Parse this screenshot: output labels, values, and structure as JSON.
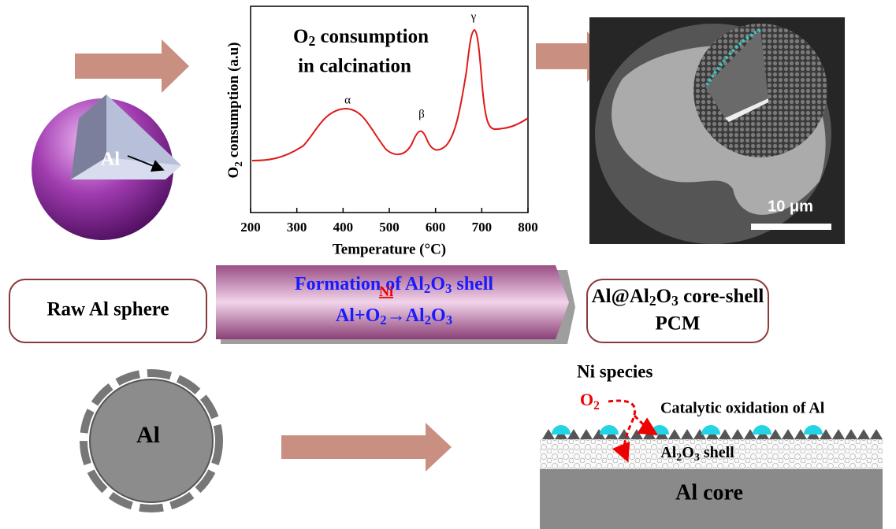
{
  "chart": {
    "type": "line",
    "title_line1": [
      "O",
      "2",
      " consumption"
    ],
    "title_line2": "in calcination",
    "y_label": [
      "O",
      "2",
      " consumption (a.u)"
    ],
    "x_label": "Temperature (°C)",
    "xlim": [
      200,
      800
    ],
    "xticks": [
      200,
      300,
      400,
      500,
      600,
      700,
      800
    ],
    "peaks": [
      "α",
      "β",
      "γ"
    ]
  },
  "image": {
    "scale_bar": "10 μm"
  },
  "labels": {
    "sphere_core": "Al",
    "raw": "Raw Al sphere",
    "process_line1": [
      "Formation of Al",
      "2",
      "O",
      "3",
      " shell"
    ],
    "reaction": [
      "Al+O",
      "2",
      "→",
      "Al",
      "2",
      "O",
      "3"
    ],
    "catalyst": "Ni",
    "product_line1": [
      "Al@Al",
      "2",
      "O",
      "3",
      " core-shell"
    ],
    "product_line2": "PCM",
    "circle_core": "Al",
    "ni_species": "Ni species",
    "o2": [
      "O",
      "2"
    ],
    "catalytic": "Catalytic oxidation of Al",
    "shell": [
      "Al",
      "2",
      "O",
      "3",
      " shell"
    ],
    "core": "Al core"
  }
}
